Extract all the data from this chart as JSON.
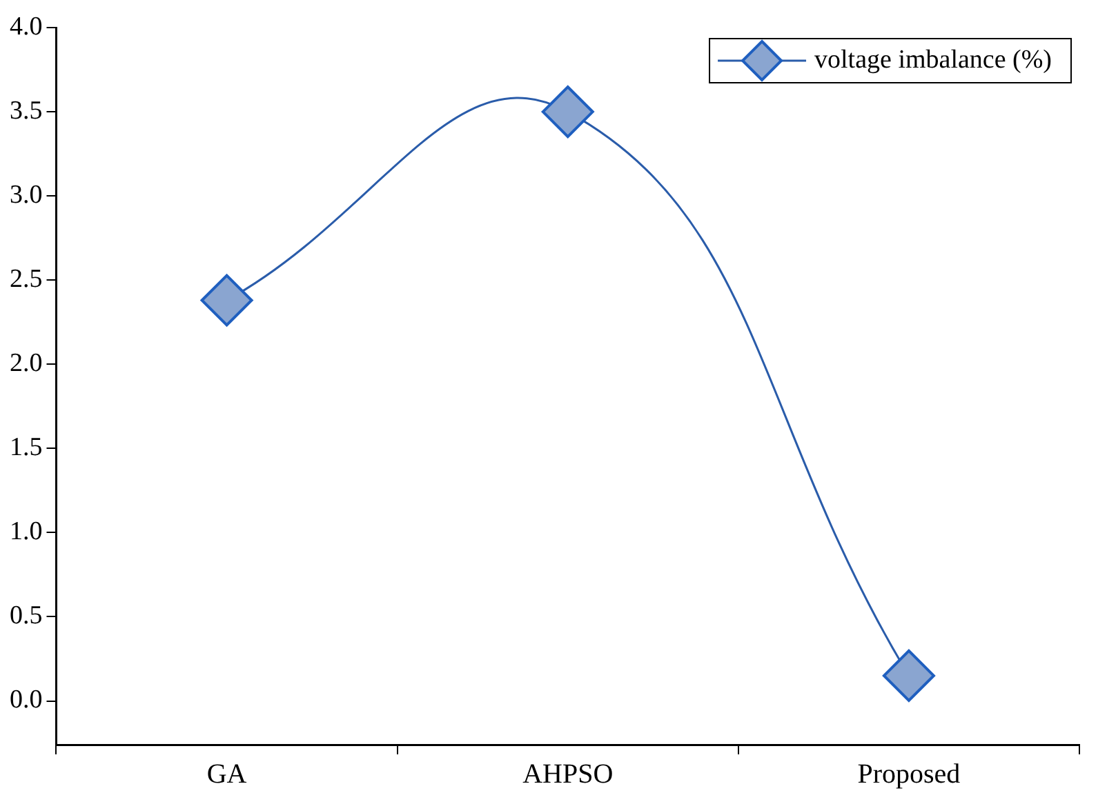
{
  "chart_data": {
    "type": "line",
    "categories": [
      "GA",
      "AHPSO",
      "Proposed"
    ],
    "series": [
      {
        "name": "voltage imbalance (%)",
        "color": "#2a5caa",
        "values": [
          2.38,
          3.5,
          0.15
        ]
      }
    ],
    "ylim": [
      -0.26,
      4.0
    ],
    "yticks": [
      {
        "value": 0,
        "label": "0.0"
      },
      0.5,
      {
        "value": 1,
        "label": "1.0"
      },
      1.5,
      {
        "value": 2,
        "label": "2.0"
      },
      2.5,
      {
        "value": 3,
        "label": "3.0"
      },
      3.5,
      {
        "value": 4,
        "label": "4.0"
      }
    ],
    "grid": false,
    "legend": "top right",
    "marker": "diamond",
    "line_style": "solid"
  }
}
